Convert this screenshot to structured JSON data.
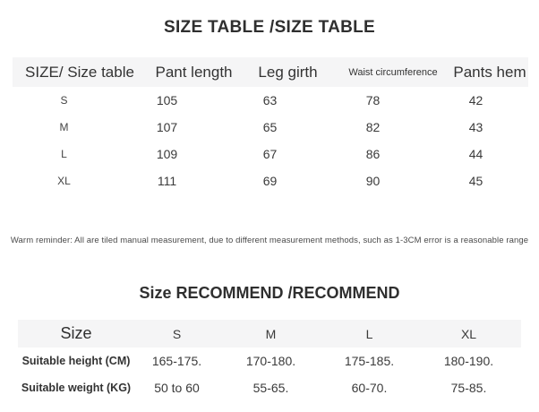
{
  "size_table": {
    "title": "SIZE TABLE /SIZE TABLE",
    "columns": [
      "SIZE/ Size table",
      "Pant length",
      "Leg girth",
      "Waist circumference",
      "Pants hem"
    ],
    "rows": [
      {
        "size": "S",
        "values": [
          "105",
          "63",
          "78",
          "42"
        ]
      },
      {
        "size": "M",
        "values": [
          "107",
          "65",
          "82",
          "43"
        ]
      },
      {
        "size": "L",
        "values": [
          "109",
          "67",
          "86",
          "44"
        ]
      },
      {
        "size": "XL",
        "values": [
          "111",
          "69",
          "90",
          "45"
        ]
      }
    ],
    "note": "Warm reminder: All are tiled manual measurement, due to different measurement methods, such as 1-3CM error is a reasonable range"
  },
  "recommend_table": {
    "title": "Size RECOMMEND /RECOMMEND",
    "columns": [
      "Size",
      "S",
      "M",
      "L",
      "XL"
    ],
    "rows": [
      {
        "label": "Suitable height (CM)",
        "values": [
          "165-175.",
          "170-180.",
          "175-185.",
          "180-190."
        ]
      },
      {
        "label": "Suitable weight (KG)",
        "values": [
          "50 to 60",
          "55-65.",
          "60-70.",
          "75-85."
        ]
      }
    ]
  },
  "colors": {
    "background": "#ffffff",
    "header_row_bg": "#f5f5f6",
    "text": "#3a3a3a"
  }
}
